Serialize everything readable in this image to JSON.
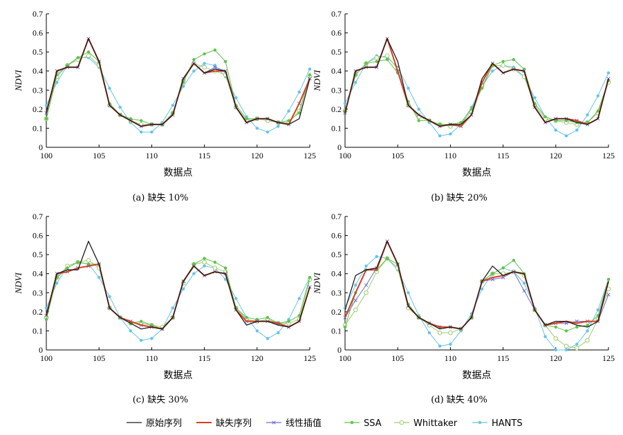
{
  "chart_data": [
    {
      "type": "line",
      "caption": "(a) 缺失 10%",
      "xlabel": "数据点",
      "ylabel": "NDVI",
      "xlim": [
        100,
        125
      ],
      "ylim": [
        0,
        0.7
      ],
      "xticks": [
        100,
        105,
        110,
        115,
        120,
        125
      ],
      "yticks": [
        0,
        0.1,
        0.2,
        0.3,
        0.4,
        0.5,
        0.6,
        0.7
      ],
      "x": [
        100,
        101,
        102,
        103,
        104,
        105,
        106,
        107,
        108,
        109,
        110,
        111,
        112,
        113,
        114,
        115,
        116,
        117,
        118,
        119,
        120,
        121,
        122,
        123,
        124,
        125
      ],
      "series": [
        {
          "name": "原始序列",
          "values": [
            0.18,
            0.4,
            0.42,
            0.42,
            0.57,
            0.45,
            0.22,
            0.17,
            0.14,
            0.11,
            0.12,
            0.12,
            0.17,
            0.36,
            0.44,
            0.39,
            0.41,
            0.4,
            0.21,
            0.13,
            0.15,
            0.15,
            0.13,
            0.12,
            0.15,
            0.36
          ]
        },
        {
          "name": "缺失序列",
          "values": [
            0.18,
            0.4,
            0.42,
            0.42,
            0.57,
            0.45,
            0.22,
            0.17,
            0.14,
            0.11,
            0.12,
            0.12,
            0.17,
            0.36,
            0.44,
            0.39,
            0.4,
            0.4,
            0.21,
            0.13,
            0.15,
            0.15,
            0.13,
            0.12,
            0.23,
            0.36
          ]
        },
        {
          "name": "线性插值",
          "values": [
            0.18,
            0.4,
            0.42,
            0.42,
            0.57,
            0.45,
            0.22,
            0.17,
            0.14,
            0.11,
            0.12,
            0.12,
            0.17,
            0.36,
            0.44,
            0.39,
            0.42,
            0.4,
            0.21,
            0.13,
            0.15,
            0.15,
            0.13,
            0.12,
            0.23,
            0.36
          ]
        },
        {
          "name": "SSA",
          "values": [
            0.15,
            0.38,
            0.43,
            0.47,
            0.5,
            0.45,
            0.23,
            0.17,
            0.15,
            0.14,
            0.12,
            0.12,
            0.18,
            0.34,
            0.46,
            0.49,
            0.51,
            0.45,
            0.22,
            0.15,
            0.15,
            0.15,
            0.13,
            0.14,
            0.18,
            0.38
          ]
        },
        {
          "name": "Whittaker",
          "values": [
            0.15,
            0.37,
            0.43,
            0.46,
            0.48,
            0.43,
            0.22,
            0.17,
            0.14,
            0.12,
            0.12,
            0.12,
            0.18,
            0.35,
            0.44,
            0.42,
            0.4,
            0.38,
            0.21,
            0.14,
            0.15,
            0.14,
            0.13,
            0.13,
            0.19,
            0.37
          ]
        },
        {
          "name": "HANTS",
          "values": [
            0.22,
            0.34,
            0.43,
            0.47,
            0.47,
            0.42,
            0.31,
            0.21,
            0.13,
            0.08,
            0.08,
            0.13,
            0.22,
            0.32,
            0.4,
            0.44,
            0.43,
            0.37,
            0.26,
            0.16,
            0.1,
            0.08,
            0.11,
            0.19,
            0.29,
            0.41
          ]
        }
      ]
    },
    {
      "type": "line",
      "caption": "(b) 缺失 20%",
      "xlabel": "数据点",
      "ylabel": "NDVI",
      "xlim": [
        100,
        125
      ],
      "ylim": [
        0,
        0.7
      ],
      "xticks": [
        100,
        105,
        110,
        115,
        120,
        125
      ],
      "yticks": [
        0,
        0.1,
        0.2,
        0.3,
        0.4,
        0.5,
        0.6,
        0.7
      ],
      "x": [
        100,
        101,
        102,
        103,
        104,
        105,
        106,
        107,
        108,
        109,
        110,
        111,
        112,
        113,
        114,
        115,
        116,
        117,
        118,
        119,
        120,
        121,
        122,
        123,
        124,
        125
      ],
      "series": [
        {
          "name": "原始序列",
          "values": [
            0.18,
            0.4,
            0.42,
            0.42,
            0.57,
            0.45,
            0.22,
            0.17,
            0.14,
            0.11,
            0.12,
            0.12,
            0.17,
            0.36,
            0.44,
            0.39,
            0.41,
            0.4,
            0.21,
            0.13,
            0.15,
            0.15,
            0.13,
            0.12,
            0.15,
            0.36
          ]
        },
        {
          "name": "缺失序列",
          "values": [
            0.18,
            0.4,
            0.42,
            0.42,
            0.57,
            0.4,
            0.22,
            0.17,
            0.14,
            0.11,
            0.12,
            0.11,
            0.17,
            0.34,
            0.44,
            0.39,
            0.41,
            0.4,
            0.21,
            0.13,
            0.15,
            0.15,
            0.14,
            0.12,
            0.15,
            0.36
          ]
        },
        {
          "name": "线性插值",
          "values": [
            0.18,
            0.4,
            0.42,
            0.42,
            0.57,
            0.4,
            0.22,
            0.17,
            0.14,
            0.11,
            0.12,
            0.11,
            0.17,
            0.34,
            0.44,
            0.39,
            0.41,
            0.4,
            0.21,
            0.13,
            0.15,
            0.15,
            0.14,
            0.12,
            0.15,
            0.36
          ]
        },
        {
          "name": "SSA",
          "values": [
            0.19,
            0.38,
            0.44,
            0.45,
            0.46,
            0.39,
            0.24,
            0.14,
            0.14,
            0.12,
            0.12,
            0.13,
            0.2,
            0.31,
            0.43,
            0.45,
            0.46,
            0.41,
            0.23,
            0.16,
            0.14,
            0.14,
            0.13,
            0.13,
            0.19,
            0.35
          ]
        },
        {
          "name": "Whittaker",
          "values": [
            0.19,
            0.38,
            0.44,
            0.47,
            0.48,
            0.41,
            0.22,
            0.16,
            0.14,
            0.12,
            0.11,
            0.12,
            0.19,
            0.32,
            0.43,
            0.43,
            0.41,
            0.37,
            0.22,
            0.15,
            0.14,
            0.13,
            0.12,
            0.13,
            0.18,
            0.34
          ]
        },
        {
          "name": "HANTS",
          "values": [
            0.23,
            0.34,
            0.44,
            0.48,
            0.47,
            0.42,
            0.31,
            0.2,
            0.13,
            0.06,
            0.07,
            0.12,
            0.21,
            0.32,
            0.4,
            0.43,
            0.42,
            0.37,
            0.26,
            0.16,
            0.09,
            0.06,
            0.09,
            0.17,
            0.27,
            0.39
          ]
        }
      ]
    },
    {
      "type": "line",
      "caption": "(c) 缺失 30%",
      "xlabel": "数据点",
      "ylabel": "NDVI",
      "xlim": [
        100,
        125
      ],
      "ylim": [
        0,
        0.7
      ],
      "xticks": [
        100,
        105,
        110,
        115,
        120,
        125
      ],
      "yticks": [
        0,
        0.1,
        0.2,
        0.3,
        0.4,
        0.5,
        0.6,
        0.7
      ],
      "x": [
        100,
        101,
        102,
        103,
        104,
        105,
        106,
        107,
        108,
        109,
        110,
        111,
        112,
        113,
        114,
        115,
        116,
        117,
        118,
        119,
        120,
        121,
        122,
        123,
        124,
        125
      ],
      "series": [
        {
          "name": "原始序列",
          "values": [
            0.18,
            0.4,
            0.42,
            0.42,
            0.57,
            0.45,
            0.22,
            0.17,
            0.14,
            0.11,
            0.12,
            0.11,
            0.17,
            0.36,
            0.44,
            0.39,
            0.41,
            0.4,
            0.21,
            0.13,
            0.15,
            0.15,
            0.13,
            0.12,
            0.15,
            0.33
          ]
        },
        {
          "name": "缺失序列",
          "values": [
            0.18,
            0.4,
            0.41,
            0.43,
            0.44,
            0.45,
            0.22,
            0.17,
            0.15,
            0.13,
            0.12,
            0.11,
            0.17,
            0.36,
            0.44,
            0.39,
            0.41,
            0.4,
            0.21,
            0.15,
            0.15,
            0.15,
            0.14,
            0.12,
            0.15,
            0.33
          ]
        },
        {
          "name": "线性插值",
          "values": [
            0.18,
            0.4,
            0.41,
            0.43,
            0.44,
            0.45,
            0.22,
            0.17,
            0.15,
            0.13,
            0.12,
            0.11,
            0.17,
            0.36,
            0.44,
            0.39,
            0.41,
            0.4,
            0.21,
            0.15,
            0.15,
            0.15,
            0.14,
            0.12,
            0.15,
            0.33
          ]
        },
        {
          "name": "SSA",
          "values": [
            0.16,
            0.38,
            0.43,
            0.46,
            0.45,
            0.45,
            0.22,
            0.17,
            0.14,
            0.15,
            0.13,
            0.11,
            0.17,
            0.36,
            0.45,
            0.48,
            0.46,
            0.43,
            0.22,
            0.17,
            0.16,
            0.17,
            0.14,
            0.15,
            0.18,
            0.38
          ]
        },
        {
          "name": "Whittaker",
          "values": [
            0.17,
            0.38,
            0.44,
            0.46,
            0.47,
            0.43,
            0.22,
            0.17,
            0.14,
            0.14,
            0.13,
            0.12,
            0.17,
            0.35,
            0.45,
            0.46,
            0.43,
            0.41,
            0.22,
            0.16,
            0.15,
            0.16,
            0.14,
            0.14,
            0.16,
            0.37
          ]
        },
        {
          "name": "HANTS",
          "values": [
            0.22,
            0.35,
            0.44,
            0.46,
            0.45,
            0.38,
            0.28,
            0.17,
            0.1,
            0.05,
            0.06,
            0.11,
            0.22,
            0.32,
            0.4,
            0.44,
            0.43,
            0.37,
            0.27,
            0.17,
            0.1,
            0.06,
            0.09,
            0.16,
            0.27,
            0.38
          ]
        }
      ]
    },
    {
      "type": "line",
      "caption": "(d) 缺失 40%",
      "xlabel": "数据点",
      "ylabel": "NDVI",
      "xlim": [
        100,
        125
      ],
      "ylim": [
        0,
        0.7
      ],
      "xticks": [
        100,
        105,
        110,
        115,
        120,
        125
      ],
      "yticks": [
        0,
        0.1,
        0.2,
        0.3,
        0.4,
        0.5,
        0.6,
        0.7
      ],
      "x": [
        100,
        101,
        102,
        103,
        104,
        105,
        106,
        107,
        108,
        109,
        110,
        111,
        112,
        113,
        114,
        115,
        116,
        117,
        118,
        119,
        120,
        121,
        122,
        123,
        124,
        125
      ],
      "series": [
        {
          "name": "原始序列",
          "values": [
            0.21,
            0.39,
            0.42,
            0.43,
            0.57,
            0.45,
            0.23,
            0.17,
            0.14,
            0.11,
            0.12,
            0.11,
            0.17,
            0.36,
            0.44,
            0.39,
            0.41,
            0.4,
            0.21,
            0.13,
            0.15,
            0.15,
            0.13,
            0.12,
            0.15,
            0.36
          ]
        },
        {
          "name": "缺失序列",
          "values": [
            0.17,
            0.3,
            0.42,
            0.42,
            0.57,
            0.45,
            0.23,
            0.17,
            0.14,
            0.12,
            0.12,
            0.11,
            0.17,
            0.36,
            0.38,
            0.39,
            0.41,
            0.4,
            0.21,
            0.13,
            0.14,
            0.15,
            0.14,
            0.15,
            0.15,
            0.36
          ]
        },
        {
          "name": "线性插值",
          "values": [
            0.17,
            0.26,
            0.34,
            0.43,
            0.57,
            0.45,
            0.23,
            0.17,
            0.14,
            0.12,
            0.12,
            0.11,
            0.17,
            0.36,
            0.37,
            0.38,
            0.41,
            0.31,
            0.21,
            0.13,
            0.14,
            0.14,
            0.15,
            0.15,
            0.15,
            0.29
          ]
        },
        {
          "name": "SSA",
          "values": [
            0.12,
            0.3,
            0.42,
            0.42,
            0.48,
            0.45,
            0.24,
            0.17,
            0.14,
            0.12,
            0.12,
            0.11,
            0.17,
            0.36,
            0.4,
            0.43,
            0.47,
            0.4,
            0.21,
            0.13,
            0.12,
            0.1,
            0.12,
            0.13,
            0.18,
            0.37
          ]
        },
        {
          "name": "Whittaker",
          "values": [
            0.13,
            0.21,
            0.3,
            0.41,
            0.48,
            0.43,
            0.22,
            0.17,
            0.13,
            0.09,
            0.09,
            0.11,
            0.17,
            0.36,
            0.4,
            0.4,
            0.41,
            0.39,
            0.21,
            0.13,
            0.06,
            0.02,
            0.01,
            0.05,
            0.16,
            0.32
          ]
        },
        {
          "name": "HANTS",
          "values": [
            0.22,
            0.34,
            0.44,
            0.49,
            0.48,
            0.42,
            0.3,
            0.18,
            0.09,
            0.02,
            0.03,
            0.1,
            0.19,
            0.32,
            0.4,
            0.43,
            0.41,
            0.35,
            0.22,
            0.07,
            0.0,
            0.0,
            0.03,
            0.1,
            0.21,
            0.37
          ]
        }
      ]
    }
  ],
  "legend": [
    {
      "name": "原始序列",
      "color": "#1a1a1a",
      "marker": "none"
    },
    {
      "name": "缺失序列",
      "color": "#d93c1f",
      "marker": "none"
    },
    {
      "name": "线性插值",
      "color": "#6c6ccf",
      "marker": "x"
    },
    {
      "name": "SSA",
      "color": "#5cc24a",
      "marker": "dot"
    },
    {
      "name": "Whittaker",
      "color": "#9ccb6c",
      "marker": "circle"
    },
    {
      "name": "HANTS",
      "color": "#63c3ee",
      "marker": "dot"
    }
  ]
}
